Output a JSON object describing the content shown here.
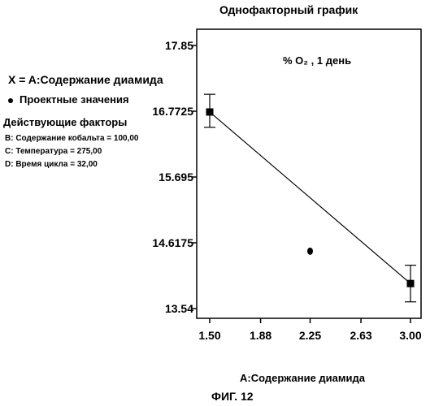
{
  "chart_data": {
    "type": "line",
    "title": "Однофакторный график",
    "annotation": "% O₂ , 1 день",
    "xlabel": "A:Содержание диамида",
    "ylabel": "",
    "x_ticks": [
      1.5,
      1.88,
      2.25,
      2.63,
      3.0
    ],
    "x_tick_labels": [
      "1.50",
      "1.88",
      "2.25",
      "2.63",
      "3.00"
    ],
    "y_ticks": [
      13.54,
      14.6175,
      15.695,
      16.7725,
      17.85
    ],
    "y_tick_labels": [
      "13.54",
      "14.6175",
      "15.695",
      "16.7725",
      "17.85"
    ],
    "xlim": [
      1.5,
      3.0
    ],
    "ylim": [
      13.54,
      17.85
    ],
    "series": [
      {
        "x": [
          1.5,
          3.0
        ],
        "y": [
          16.76,
          13.95
        ],
        "error_low": [
          16.51,
          13.65
        ],
        "error_high": [
          17.05,
          14.25
        ]
      }
    ],
    "design_points": [
      {
        "x": 2.25,
        "y": 14.48
      }
    ],
    "grid": false
  },
  "legend": {
    "x_equals": "X = A:Содержание диамида",
    "design_points_label": "Проектные значения",
    "factors_title": "Действующие факторы",
    "factors": [
      "B: Содержание кобальта = 100,00",
      "C: Температура = 275,00",
      "D: Время цикла = 32,00"
    ]
  },
  "figure_caption": "ФИГ. 12",
  "colors": {
    "ink": "#000000",
    "background": "#ffffff"
  }
}
